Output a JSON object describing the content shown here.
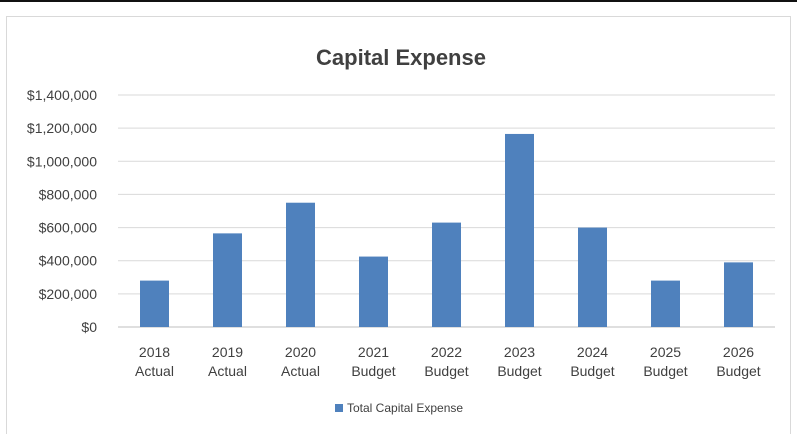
{
  "chart_data": {
    "type": "bar",
    "title": "Capital Expense",
    "xlabel": "",
    "ylabel": "",
    "categories": [
      [
        "2018",
        "Actual"
      ],
      [
        "2019",
        "Actual"
      ],
      [
        "2020",
        "Actual"
      ],
      [
        "2021",
        "Budget"
      ],
      [
        "2022",
        "Budget"
      ],
      [
        "2023",
        "Budget"
      ],
      [
        "2024",
        "Budget"
      ],
      [
        "2025",
        "Budget"
      ],
      [
        "2026",
        "Budget"
      ]
    ],
    "series": [
      {
        "name": "Total Capital Expense",
        "color": "#4f81bd",
        "values": [
          280000,
          565000,
          750000,
          425000,
          630000,
          1165000,
          600000,
          280000,
          390000
        ]
      }
    ],
    "ylim": [
      0,
      1400000
    ],
    "yticks": [
      0,
      200000,
      400000,
      600000,
      800000,
      1000000,
      1200000,
      1400000
    ],
    "ytick_labels": [
      "$0",
      "$200,000",
      "$400,000",
      "$600,000",
      "$800,000",
      "$1,000,000",
      "$1,200,000",
      "$1,400,000"
    ],
    "grid": true,
    "legend_position": "bottom"
  }
}
